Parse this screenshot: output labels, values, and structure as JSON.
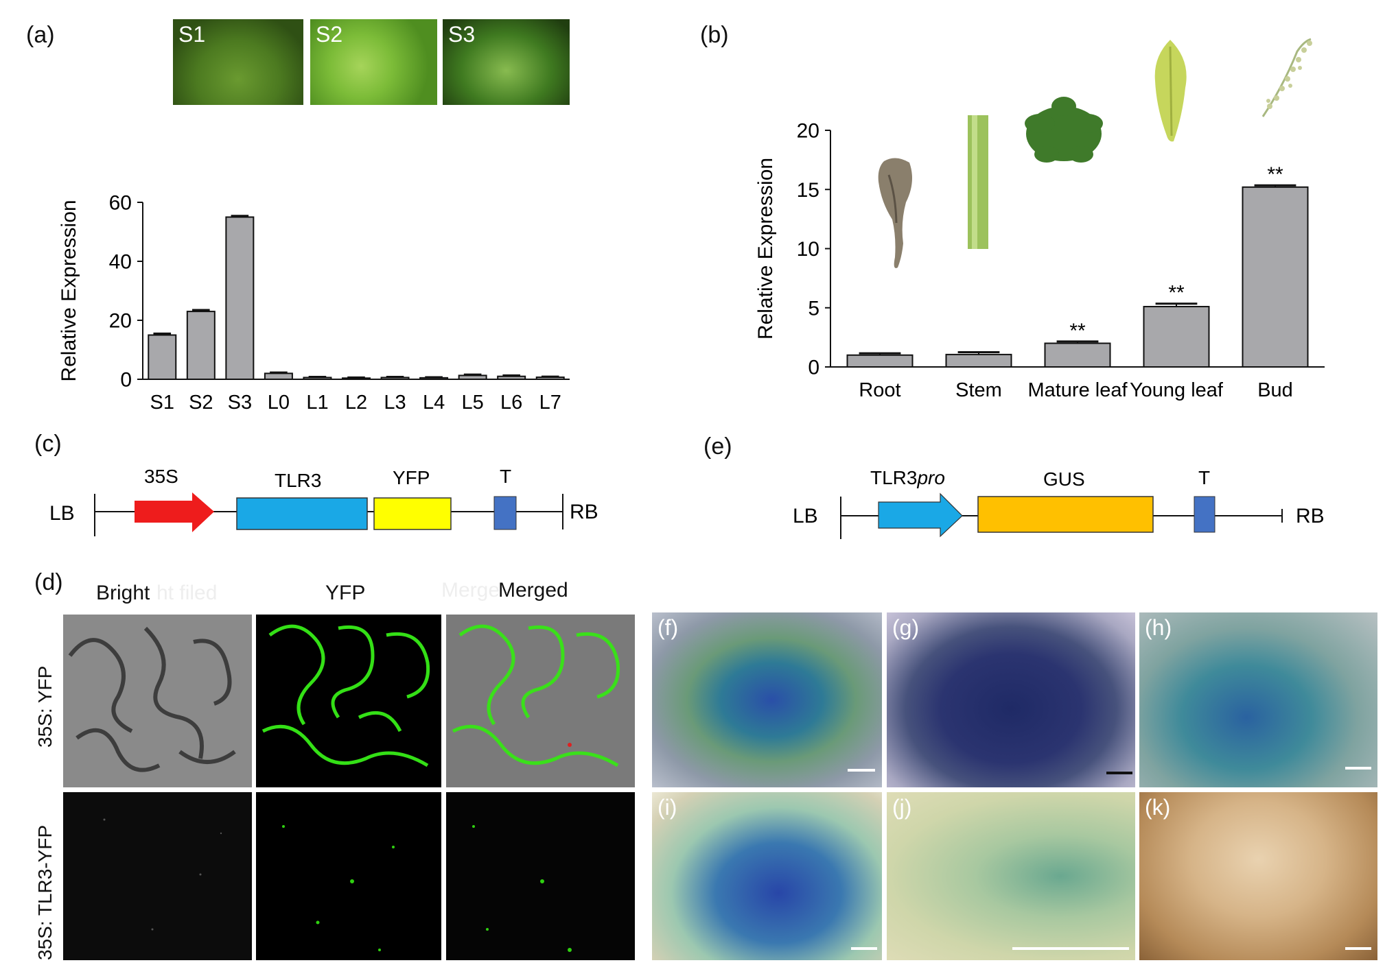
{
  "panels": {
    "a": {
      "label": "(a)",
      "thumbnails": [
        "S1",
        "S2",
        "S3"
      ],
      "chart_data": {
        "type": "bar",
        "ylabel": "Relative Expression",
        "ylim": [
          0,
          60
        ],
        "yticks": [
          "0",
          "20",
          "40",
          "60"
        ],
        "categories": [
          "S1",
          "S2",
          "S3",
          "L0",
          "L1",
          "L2",
          "L3",
          "L4",
          "L5",
          "L6",
          "L7"
        ],
        "values": [
          15,
          23,
          55,
          2,
          0.6,
          0.4,
          0.6,
          0.5,
          1.3,
          1.0,
          0.7
        ],
        "errors": [
          0.5,
          0.5,
          0.4,
          0.3,
          0.2,
          0.2,
          0.2,
          0.2,
          0.3,
          0.3,
          0.2
        ],
        "bar_color": "#a8a8ab"
      }
    },
    "b": {
      "label": "(b)",
      "chart_data": {
        "type": "bar",
        "ylabel": "Relative Expression",
        "ylim": [
          0,
          20
        ],
        "yticks": [
          "0",
          "5",
          "10",
          "15",
          "20"
        ],
        "categories": [
          "Root",
          "Stem",
          "Mature leaf",
          "Young leaf",
          "Bud"
        ],
        "values": [
          1.0,
          1.05,
          2.0,
          5.1,
          15.2
        ],
        "errors": [
          0.15,
          0.2,
          0.15,
          0.25,
          0.15
        ],
        "significance": [
          "",
          "",
          "**",
          "**",
          "**"
        ],
        "bar_color": "#a8a8ab"
      }
    },
    "c": {
      "label": "(c)",
      "left_border": "LB",
      "right_border": "RB",
      "promoter": "35S",
      "gene": "TLR3",
      "reporter": "YFP",
      "terminator": "T",
      "colors": {
        "promoter": "#ee1c1c",
        "gene": "#1aa8e6",
        "reporter": "#ffff00",
        "terminator": "#4472c4"
      }
    },
    "e": {
      "label": "(e)",
      "left_border": "LB",
      "right_border": "RB",
      "promoter_main": "TLR3",
      "promoter_suffix": "pro",
      "reporter": "GUS",
      "terminator": "T",
      "colors": {
        "promoter": "#1aa8e6",
        "reporter": "#ffc000",
        "terminator": "#4472c4"
      }
    },
    "d": {
      "label": "(d)",
      "columns": [
        "Bright",
        "YFP",
        "Merged"
      ],
      "ghost_columns": [
        "ht filed",
        "Merge"
      ],
      "rows": [
        "35S: YFP",
        "35S: TLR3-YFP"
      ]
    },
    "gus": {
      "labels": [
        "(f)",
        "(g)",
        "(h)",
        "(i)",
        "(j)",
        "(k)"
      ]
    }
  }
}
